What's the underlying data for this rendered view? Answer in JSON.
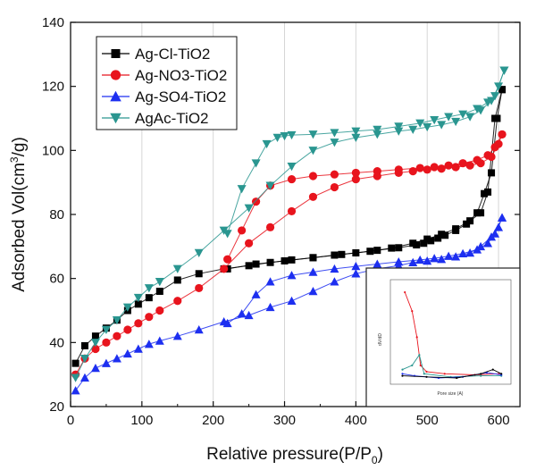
{
  "chart_data": {
    "type": "line",
    "xlabel": "Relative pressure(P/P",
    "xlabel_sub": "0",
    "xlabel_close": ")",
    "ylabel": "Adsorbed Vol(cm",
    "ylabel_sup": "3",
    "ylabel_close": "/g)",
    "xlim": [
      0,
      630
    ],
    "ylim": [
      20,
      140
    ],
    "xticks": [
      0,
      100,
      200,
      300,
      400,
      500,
      600
    ],
    "yticks": [
      20,
      40,
      60,
      80,
      100,
      120,
      140
    ],
    "grid": "vertical",
    "legend_placement": "top-left",
    "series": [
      {
        "name": "Ag-Cl-TiO2",
        "color": "#000000",
        "marker": "square",
        "adsorption_x": [
          7,
          20,
          35,
          50,
          65,
          80,
          95,
          110,
          125,
          150,
          180,
          215,
          250,
          280,
          310,
          340,
          370,
          400,
          430,
          460,
          485,
          495,
          505,
          515,
          525,
          540,
          555,
          570,
          580,
          590,
          598,
          605
        ],
        "adsorption_y": [
          33.5,
          39,
          42,
          44.5,
          47,
          50,
          52,
          54,
          56,
          59.5,
          61.5,
          63,
          64,
          65,
          65.8,
          66.5,
          67.3,
          68,
          68.8,
          69.6,
          70.5,
          71,
          71.8,
          72.6,
          73.5,
          75,
          77,
          80.5,
          86.5,
          93,
          110,
          119
        ],
        "desorption_x": [
          605,
          595,
          585,
          575,
          560,
          540,
          520,
          500,
          480,
          450,
          420,
          380,
          340,
          300,
          260,
          220
        ],
        "desorption_y": [
          119,
          110,
          87,
          80.5,
          78,
          75.5,
          73.8,
          72.3,
          71,
          69.5,
          68.5,
          67.5,
          66.5,
          65.5,
          64.5,
          63
        ]
      },
      {
        "name": "Ag-NO3-TiO2",
        "color": "#e8141d",
        "marker": "circle",
        "adsorption_x": [
          7,
          20,
          35,
          50,
          65,
          80,
          95,
          110,
          125,
          150,
          180,
          215,
          250,
          280,
          310,
          340,
          370,
          400,
          430,
          460,
          480,
          500,
          520,
          540,
          560,
          575,
          590,
          600,
          605
        ],
        "adsorption_y": [
          30,
          35,
          38,
          40,
          42,
          44,
          46,
          48,
          50,
          53,
          57,
          63,
          71,
          76,
          81,
          85.5,
          88.5,
          91,
          92,
          93,
          93.5,
          94,
          94.3,
          94.8,
          95.3,
          96,
          98,
          102,
          105
        ],
        "desorption_x": [
          605,
          595,
          585,
          570,
          550,
          530,
          510,
          490,
          460,
          430,
          400,
          370,
          340,
          310,
          280,
          260,
          240,
          220
        ],
        "desorption_y": [
          105,
          101,
          98.5,
          97,
          96,
          95.3,
          94.8,
          94.5,
          94,
          93.5,
          93,
          92.5,
          92,
          91,
          89,
          84,
          75,
          66
        ]
      },
      {
        "name": "Ag-SO4-TiO2",
        "color": "#1d2ff0",
        "marker": "triangle-up",
        "adsorption_x": [
          7,
          20,
          35,
          50,
          65,
          80,
          95,
          110,
          125,
          150,
          180,
          215,
          250,
          280,
          310,
          340,
          370,
          400,
          430,
          460,
          480,
          500,
          520,
          540,
          560,
          575,
          590,
          600,
          605
        ],
        "adsorption_y": [
          25,
          29,
          32,
          33.5,
          35,
          36.5,
          38,
          39.5,
          40.5,
          42,
          44,
          46.5,
          48.5,
          51,
          53,
          56,
          59,
          61.5,
          63,
          64,
          65,
          65.5,
          66,
          66.8,
          68,
          70,
          73,
          76,
          79
        ],
        "desorption_x": [
          605,
          595,
          585,
          570,
          550,
          530,
          510,
          490,
          460,
          430,
          400,
          370,
          340,
          310,
          280,
          260,
          240,
          220
        ],
        "desorption_y": [
          79,
          74,
          71,
          69,
          67.8,
          67,
          66.3,
          65.8,
          65.2,
          64.5,
          63.8,
          63,
          62,
          61,
          59,
          55,
          49,
          46
        ]
      },
      {
        "name": "AgAc-TiO2",
        "color": "#2a9690",
        "marker": "triangle-down",
        "adsorption_x": [
          7,
          20,
          35,
          50,
          65,
          80,
          95,
          110,
          125,
          150,
          180,
          215,
          250,
          280,
          310,
          340,
          370,
          400,
          430,
          460,
          480,
          500,
          520,
          540,
          560,
          575,
          590,
          600,
          608
        ],
        "adsorption_y": [
          29,
          35,
          40,
          44,
          47,
          51,
          54,
          57,
          59,
          63,
          68,
          75,
          82,
          89,
          95,
          100,
          102.5,
          104,
          105,
          106,
          106.5,
          107.3,
          108,
          109,
          110.5,
          112.5,
          115.5,
          120,
          125
        ],
        "desorption_x": [
          608,
          595,
          585,
          570,
          550,
          530,
          510,
          490,
          460,
          430,
          400,
          370,
          340,
          310,
          300,
          290,
          275,
          260,
          240,
          220
        ],
        "desorption_y": [
          125,
          117,
          115,
          113,
          111.3,
          110.5,
          109.5,
          108.5,
          107.5,
          106.5,
          106,
          105.5,
          105,
          104.8,
          104.5,
          104,
          102,
          96,
          88,
          74
        ]
      }
    ],
    "inset": {
      "ylabel": "dV/dD",
      "xlabel": "Pore size (A)"
    }
  }
}
